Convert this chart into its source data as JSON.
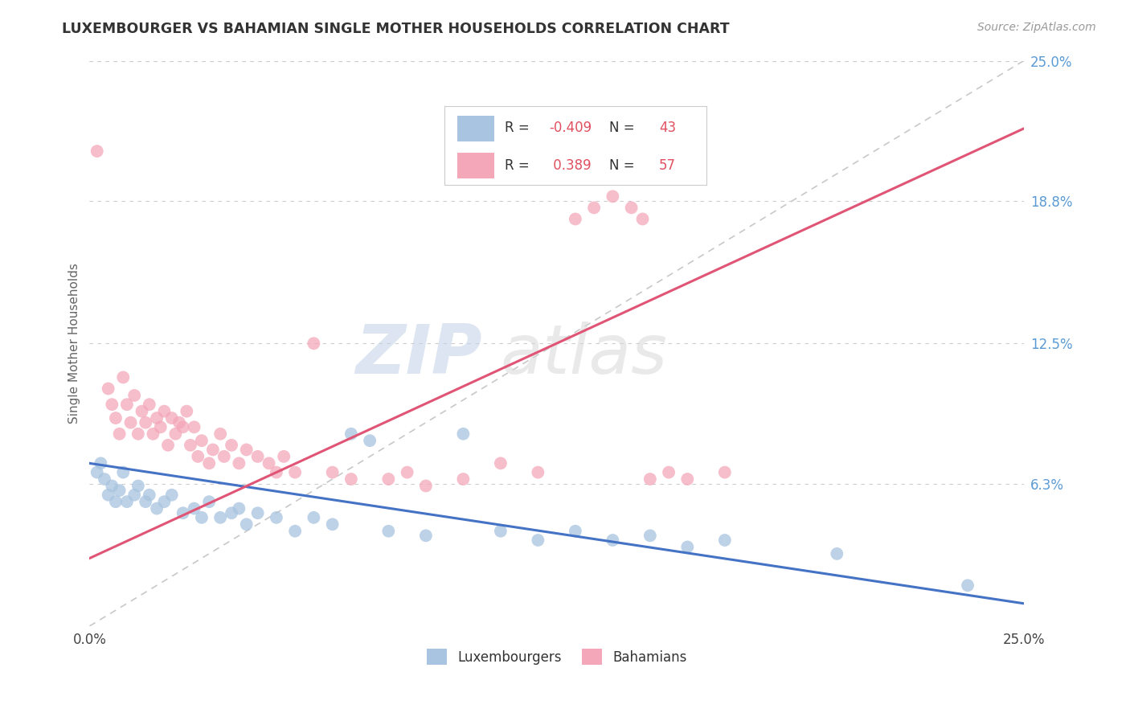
{
  "title": "LUXEMBOURGER VS BAHAMIAN SINGLE MOTHER HOUSEHOLDS CORRELATION CHART",
  "source": "Source: ZipAtlas.com",
  "ylabel": "Single Mother Households",
  "xlim": [
    0.0,
    0.25
  ],
  "ylim": [
    0.0,
    0.25
  ],
  "ytick_labels_right": [
    "25.0%",
    "18.8%",
    "12.5%",
    "6.3%"
  ],
  "ytick_positions_right": [
    0.25,
    0.188,
    0.125,
    0.063
  ],
  "grid_color": "#cccccc",
  "background_color": "#ffffff",
  "luxembourger_color": "#a8c4e0",
  "bahamian_color": "#f4a7b9",
  "luxembourger_line_color": "#4472c4",
  "bahamian_line_color": "#e05575",
  "trend_line_color": "#c8c8c8",
  "R_luxembourger": -0.409,
  "N_luxembourger": 43,
  "R_bahamian": 0.389,
  "N_bahamian": 57,
  "lux_line_x0": 0.0,
  "lux_line_y0": 0.072,
  "lux_line_x1": 0.25,
  "lux_line_y1": 0.01,
  "bah_line_x0": 0.0,
  "bah_line_y0": 0.03,
  "bah_line_x1": 0.25,
  "bah_line_y1": 0.22,
  "luxembourger_scatter": [
    [
      0.002,
      0.068
    ],
    [
      0.003,
      0.072
    ],
    [
      0.004,
      0.065
    ],
    [
      0.005,
      0.058
    ],
    [
      0.006,
      0.062
    ],
    [
      0.007,
      0.055
    ],
    [
      0.008,
      0.06
    ],
    [
      0.009,
      0.068
    ],
    [
      0.01,
      0.055
    ],
    [
      0.012,
      0.058
    ],
    [
      0.013,
      0.062
    ],
    [
      0.015,
      0.055
    ],
    [
      0.016,
      0.058
    ],
    [
      0.018,
      0.052
    ],
    [
      0.02,
      0.055
    ],
    [
      0.022,
      0.058
    ],
    [
      0.025,
      0.05
    ],
    [
      0.028,
      0.052
    ],
    [
      0.03,
      0.048
    ],
    [
      0.032,
      0.055
    ],
    [
      0.035,
      0.048
    ],
    [
      0.038,
      0.05
    ],
    [
      0.04,
      0.052
    ],
    [
      0.042,
      0.045
    ],
    [
      0.045,
      0.05
    ],
    [
      0.05,
      0.048
    ],
    [
      0.055,
      0.042
    ],
    [
      0.06,
      0.048
    ],
    [
      0.065,
      0.045
    ],
    [
      0.07,
      0.085
    ],
    [
      0.075,
      0.082
    ],
    [
      0.08,
      0.042
    ],
    [
      0.09,
      0.04
    ],
    [
      0.1,
      0.085
    ],
    [
      0.11,
      0.042
    ],
    [
      0.12,
      0.038
    ],
    [
      0.13,
      0.042
    ],
    [
      0.14,
      0.038
    ],
    [
      0.15,
      0.04
    ],
    [
      0.16,
      0.035
    ],
    [
      0.17,
      0.038
    ],
    [
      0.2,
      0.032
    ],
    [
      0.235,
      0.018
    ]
  ],
  "bahamian_scatter": [
    [
      0.002,
      0.21
    ],
    [
      0.005,
      0.105
    ],
    [
      0.006,
      0.098
    ],
    [
      0.007,
      0.092
    ],
    [
      0.008,
      0.085
    ],
    [
      0.009,
      0.11
    ],
    [
      0.01,
      0.098
    ],
    [
      0.011,
      0.09
    ],
    [
      0.012,
      0.102
    ],
    [
      0.013,
      0.085
    ],
    [
      0.014,
      0.095
    ],
    [
      0.015,
      0.09
    ],
    [
      0.016,
      0.098
    ],
    [
      0.017,
      0.085
    ],
    [
      0.018,
      0.092
    ],
    [
      0.019,
      0.088
    ],
    [
      0.02,
      0.095
    ],
    [
      0.021,
      0.08
    ],
    [
      0.022,
      0.092
    ],
    [
      0.023,
      0.085
    ],
    [
      0.024,
      0.09
    ],
    [
      0.025,
      0.088
    ],
    [
      0.026,
      0.095
    ],
    [
      0.027,
      0.08
    ],
    [
      0.028,
      0.088
    ],
    [
      0.029,
      0.075
    ],
    [
      0.03,
      0.082
    ],
    [
      0.032,
      0.072
    ],
    [
      0.033,
      0.078
    ],
    [
      0.035,
      0.085
    ],
    [
      0.036,
      0.075
    ],
    [
      0.038,
      0.08
    ],
    [
      0.04,
      0.072
    ],
    [
      0.042,
      0.078
    ],
    [
      0.045,
      0.075
    ],
    [
      0.048,
      0.072
    ],
    [
      0.05,
      0.068
    ],
    [
      0.052,
      0.075
    ],
    [
      0.055,
      0.068
    ],
    [
      0.06,
      0.125
    ],
    [
      0.065,
      0.068
    ],
    [
      0.07,
      0.065
    ],
    [
      0.08,
      0.065
    ],
    [
      0.085,
      0.068
    ],
    [
      0.09,
      0.062
    ],
    [
      0.1,
      0.065
    ],
    [
      0.11,
      0.072
    ],
    [
      0.12,
      0.068
    ],
    [
      0.13,
      0.18
    ],
    [
      0.135,
      0.185
    ],
    [
      0.14,
      0.19
    ],
    [
      0.145,
      0.185
    ],
    [
      0.148,
      0.18
    ],
    [
      0.15,
      0.065
    ],
    [
      0.155,
      0.068
    ],
    [
      0.16,
      0.065
    ],
    [
      0.17,
      0.068
    ]
  ],
  "watermark_zip": "ZIP",
  "watermark_atlas": "atlas"
}
